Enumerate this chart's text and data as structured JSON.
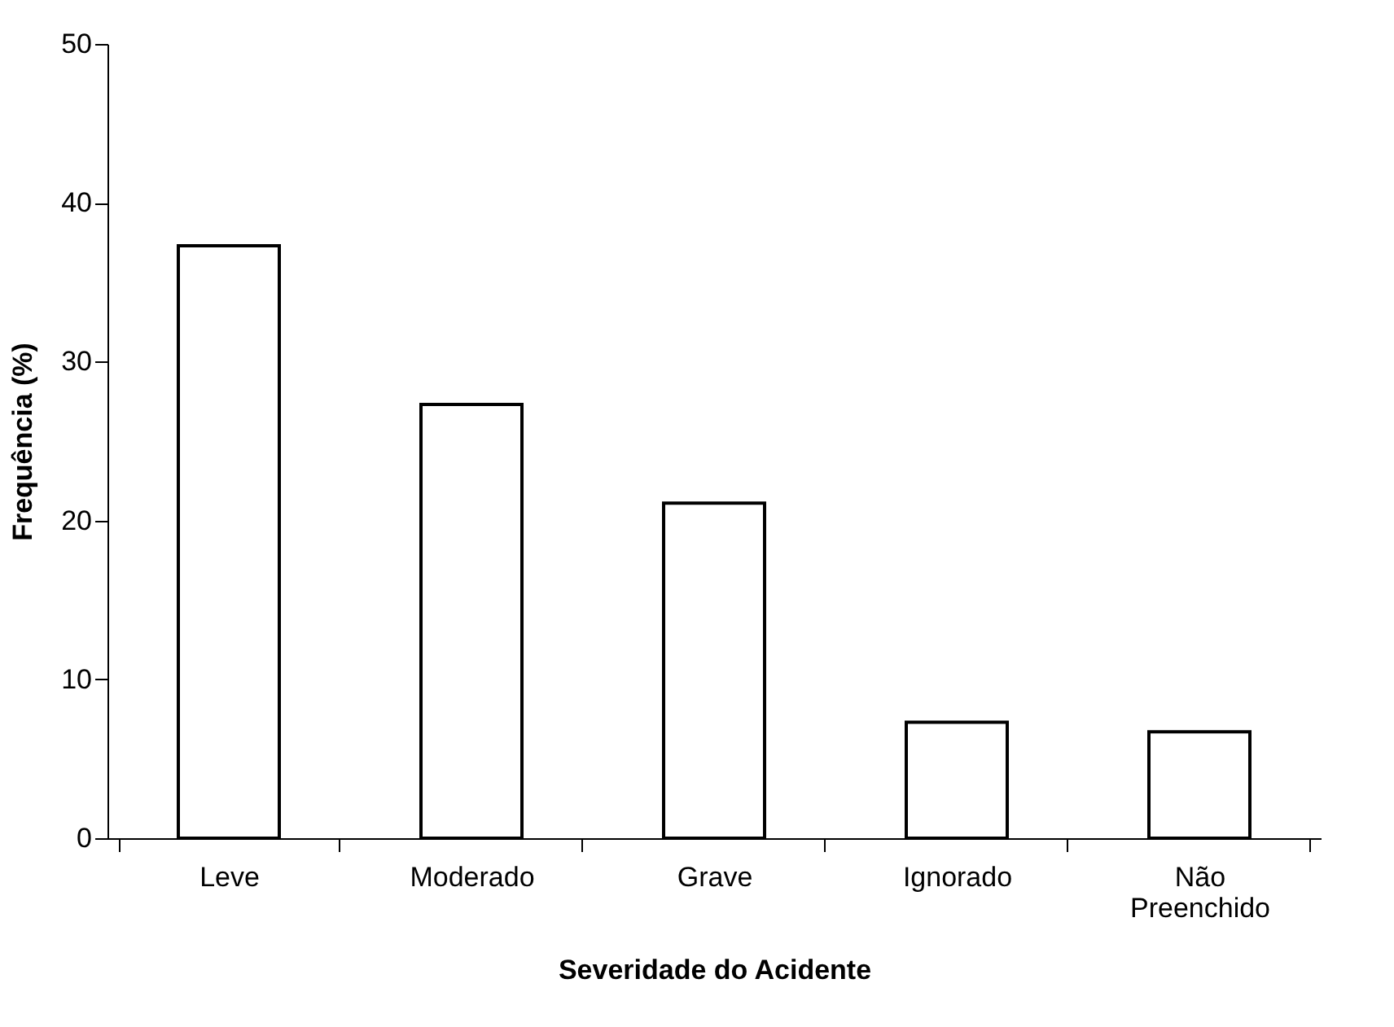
{
  "chart_data": {
    "type": "bar",
    "xlabel": "Severidade do Acidente",
    "ylabel": "Frequência (%)",
    "categories": [
      "Leve",
      "Moderado",
      "Grave",
      "Ignorado",
      "Não Preenchido"
    ],
    "values": [
      37.3,
      27.3,
      21.1,
      7.3,
      6.7
    ],
    "color": "#ffffff",
    "ylim": [
      0,
      50
    ],
    "yticks": [
      0,
      10,
      20,
      30,
      40,
      50
    ],
    "grid": false
  }
}
